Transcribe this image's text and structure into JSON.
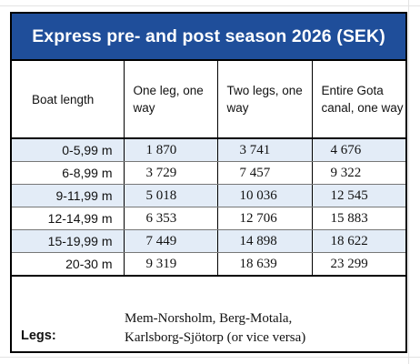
{
  "title": "Express pre- and post season 2026 (SEK)",
  "headers": {
    "boat_length": "Boat length",
    "one_leg": "One leg, one way",
    "two_legs": "Two legs, one way",
    "entire": "Entire Gota canal, one way"
  },
  "rows": [
    {
      "length": "0-5,99 m",
      "one_leg": "1 870",
      "two_legs": "3 741",
      "entire": "4 676"
    },
    {
      "length": "6-8,99 m",
      "one_leg": "3 729",
      "two_legs": "7 457",
      "entire": "9 322"
    },
    {
      "length": "9-11,99 m",
      "one_leg": "5 018",
      "two_legs": "10 036",
      "entire": "12 545"
    },
    {
      "length": "12-14,99 m",
      "one_leg": "6 353",
      "two_legs": "12 706",
      "entire": "15 883"
    },
    {
      "length": "15-19,99 m",
      "one_leg": "7 449",
      "two_legs": "14 898",
      "entire": "18 622"
    },
    {
      "length": "20-30 m",
      "one_leg": "9 319",
      "two_legs": "18 639",
      "entire": "23 299"
    }
  ],
  "legs": {
    "label": "Legs:",
    "line1": "Mem-Norsholm, Berg-Motala,",
    "line2": "Karlsborg-Sjötorp (or vice versa)"
  },
  "colors": {
    "title_bg": "#1f4e9a",
    "row_shade": "#e3ecf7"
  }
}
